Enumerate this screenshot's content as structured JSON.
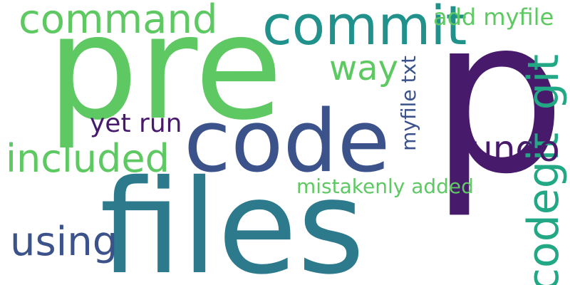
{
  "words": [
    {
      "id": "word-p",
      "text": "p",
      "color": "#481a6c",
      "vertical": false
    },
    {
      "id": "word-pre",
      "text": "pre",
      "color": "#5ec962",
      "vertical": false
    },
    {
      "id": "word-files",
      "text": "files",
      "color": "#2c7a8c",
      "vertical": false
    },
    {
      "id": "word-code",
      "text": "code",
      "color": "#3b528b",
      "vertical": false
    },
    {
      "id": "word-commit",
      "text": "commit",
      "color": "#21918c",
      "vertical": false
    },
    {
      "id": "word-command",
      "text": "command",
      "color": "#5ec962",
      "vertical": false
    },
    {
      "id": "word-add-myfile",
      "text": "add myfile",
      "color": "#5ec962",
      "vertical": false
    },
    {
      "id": "word-way",
      "text": "way",
      "color": "#5ec962",
      "vertical": false
    },
    {
      "id": "word-git",
      "text": "git",
      "color": "#22a884",
      "vertical": true
    },
    {
      "id": "word-codegit",
      "text": "codegit",
      "color": "#22a884",
      "vertical": true
    },
    {
      "id": "word-myfile-txt",
      "text": "myfile txt",
      "color": "#3b528b",
      "vertical": true
    },
    {
      "id": "word-undo",
      "text": "undo",
      "color": "#481a6c",
      "vertical": false
    },
    {
      "id": "word-included",
      "text": "included",
      "color": "#5ec962",
      "vertical": false
    },
    {
      "id": "word-yet-run",
      "text": "yet run",
      "color": "#481a6c",
      "vertical": false
    },
    {
      "id": "word-mistakenly-added",
      "text": "mistakenly added",
      "color": "#5ec962",
      "vertical": false
    },
    {
      "id": "word-using",
      "text": "using",
      "color": "#3b528b",
      "vertical": false
    }
  ]
}
